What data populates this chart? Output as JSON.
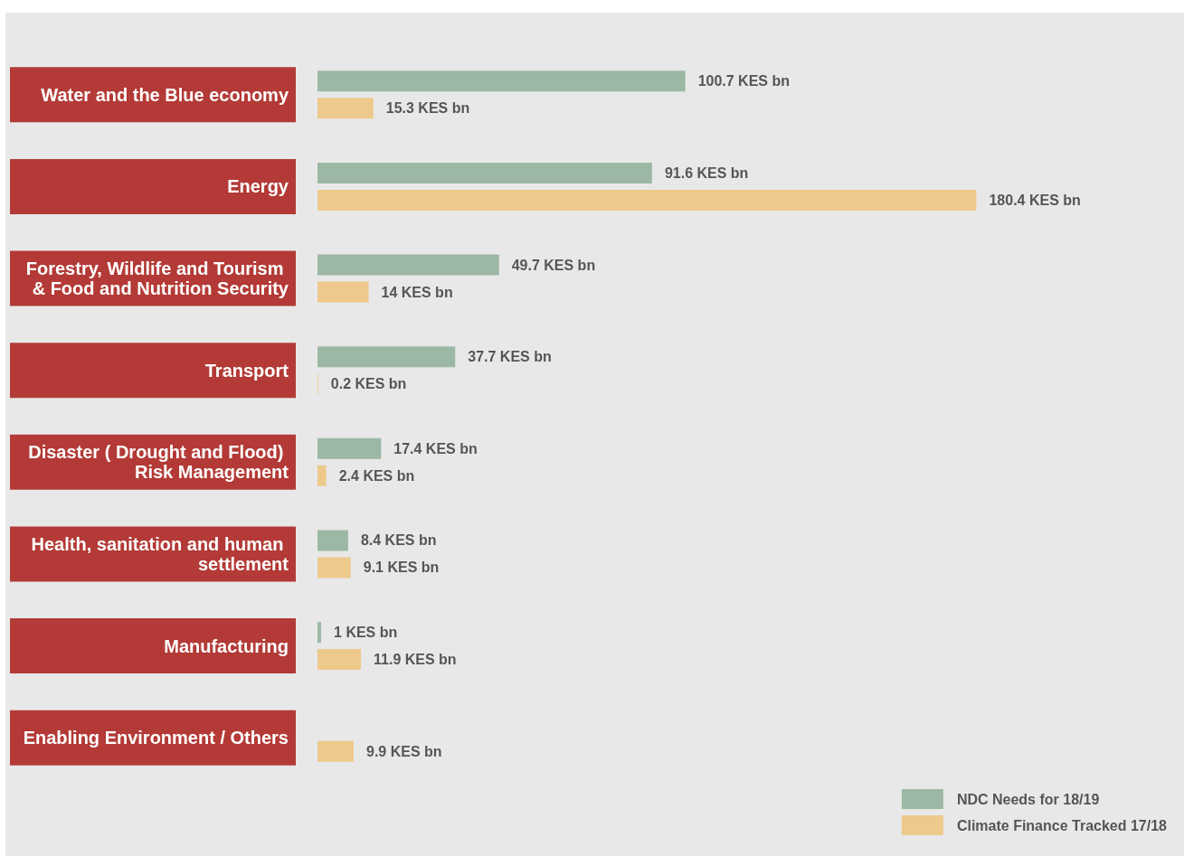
{
  "chart_data": {
    "type": "bar",
    "orientation": "horizontal",
    "categories": [
      "Water and the Blue economy",
      "Energy",
      "Forestry, Wildlife and Tourism & Food and Nutrition Security",
      "Transport",
      "Disaster ( Drought and Flood) Risk Management",
      "Health, sanitation and human settlement",
      "Manufacturing",
      "Enabling Environment / Others"
    ],
    "series": [
      {
        "name": "NDC Needs for 18/19",
        "color": "#9cb8a5",
        "values": [
          100.7,
          91.6,
          49.7,
          37.7,
          17.4,
          8.4,
          1,
          null
        ],
        "value_labels": [
          "100.7 KES bn",
          "91.6 KES bn",
          "49.7 KES bn",
          "37.7 KES bn",
          "17.4 KES bn",
          "8.4 KES bn",
          "1 KES bn",
          null
        ]
      },
      {
        "name": "Climate Finance Tracked 17/18",
        "color": "#eec98c",
        "values": [
          15.3,
          180.4,
          14,
          0.2,
          2.4,
          9.1,
          11.9,
          9.9
        ],
        "value_labels": [
          "15.3 KES bn",
          "180.4 KES bn",
          "14 KES bn",
          "0.2 KES bn",
          "2.4 KES bn",
          "9.1 KES bn",
          "11.9 KES bn",
          "9.9 KES bn"
        ]
      }
    ],
    "legend": "bottom right",
    "tick_labels": "y"
  }
}
